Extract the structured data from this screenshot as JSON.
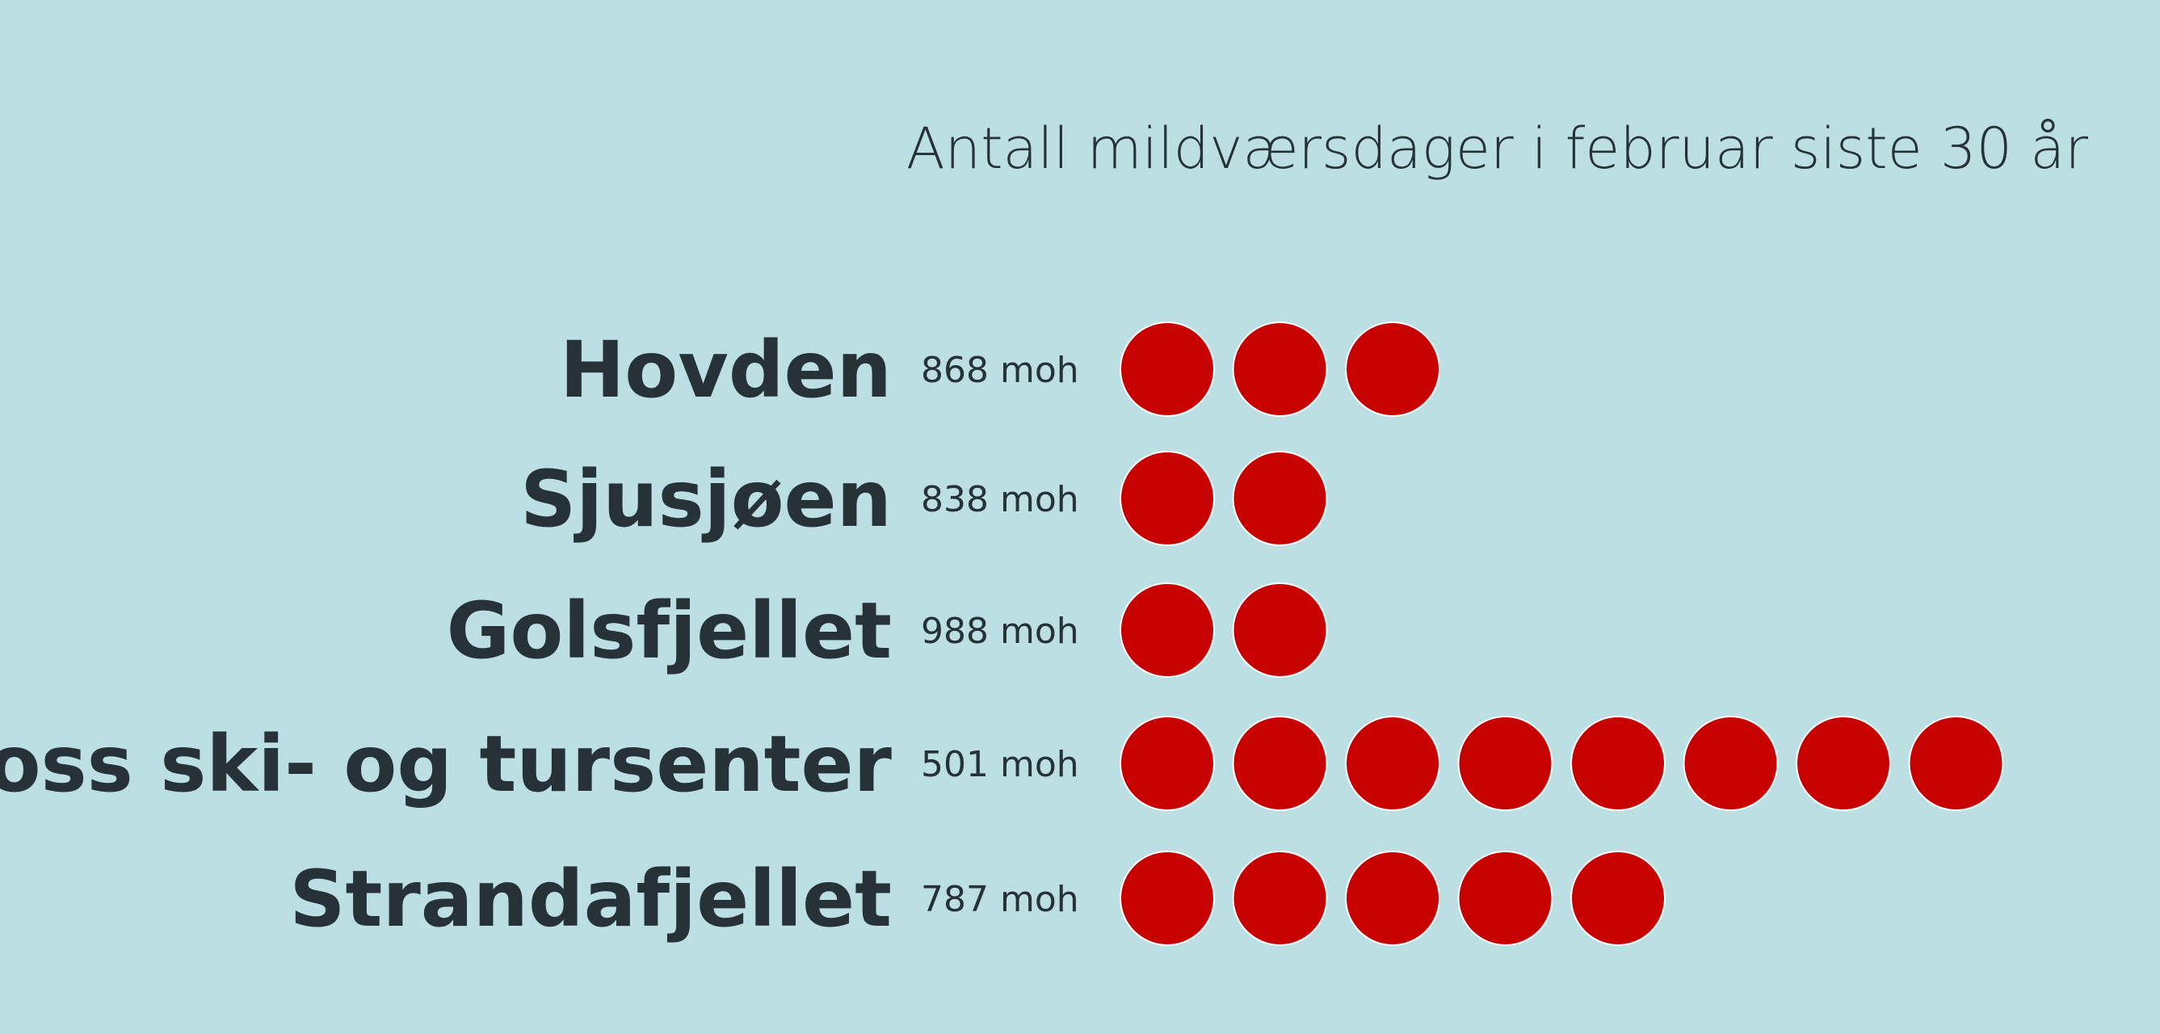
{
  "chart_data": {
    "type": "pictogram",
    "title": "Antall mildværsdager i februar siste 30 år",
    "unit_label": "moh",
    "dot_color": "#c70000",
    "rows": [
      {
        "name": "Hovden",
        "elevation": "868 moh",
        "value": 3
      },
      {
        "name": "Sjusjøen",
        "elevation": "838 moh",
        "value": 2
      },
      {
        "name": "Golsfjellet",
        "elevation": "988 moh",
        "value": 2
      },
      {
        "name": "Voss ski- og tursenter",
        "elevation": "501 moh",
        "value": 8
      },
      {
        "name": "Strandafjellet",
        "elevation": "787 moh",
        "value": 5
      }
    ]
  }
}
